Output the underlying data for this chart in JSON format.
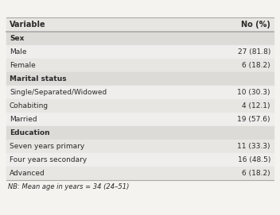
{
  "header": [
    "Variable",
    "No (%)"
  ],
  "rows": [
    {
      "label": "Sex",
      "value": "",
      "bold": true,
      "category": true
    },
    {
      "label": "Male",
      "value": "27 (81.8)",
      "bold": false,
      "category": false
    },
    {
      "label": "Female",
      "value": "6 (18.2)",
      "bold": false,
      "category": false
    },
    {
      "label": "Marital status",
      "value": "",
      "bold": true,
      "category": true
    },
    {
      "label": "Single/Separated/Widowed",
      "value": "10 (30.3)",
      "bold": false,
      "category": false
    },
    {
      "label": "Cohabiting",
      "value": "4 (12.1)",
      "bold": false,
      "category": false
    },
    {
      "label": "Married",
      "value": "19 (57.6)",
      "bold": false,
      "category": false
    },
    {
      "label": "Education",
      "value": "",
      "bold": true,
      "category": true
    },
    {
      "label": "Seven years primary",
      "value": "11 (33.3)",
      "bold": false,
      "category": false
    },
    {
      "label": "Four years secondary",
      "value": "16 (48.5)",
      "bold": false,
      "category": false
    },
    {
      "label": "Advanced",
      "value": "6 (18.2)",
      "bold": false,
      "category": false
    }
  ],
  "footnote": "NB: Mean age in years = 34 (24–51)",
  "bg_header": "#e8e6e3",
  "bg_category": "#dddbd8",
  "bg_data_light": "#f0eeed",
  "bg_data_dark": "#e8e6e3",
  "bg_figure": "#f5f3f0",
  "text_color": "#2a2a2a",
  "border_color": "#aaaaaa",
  "font_size": 6.5,
  "header_font_size": 7.0,
  "footnote_font_size": 6.0
}
